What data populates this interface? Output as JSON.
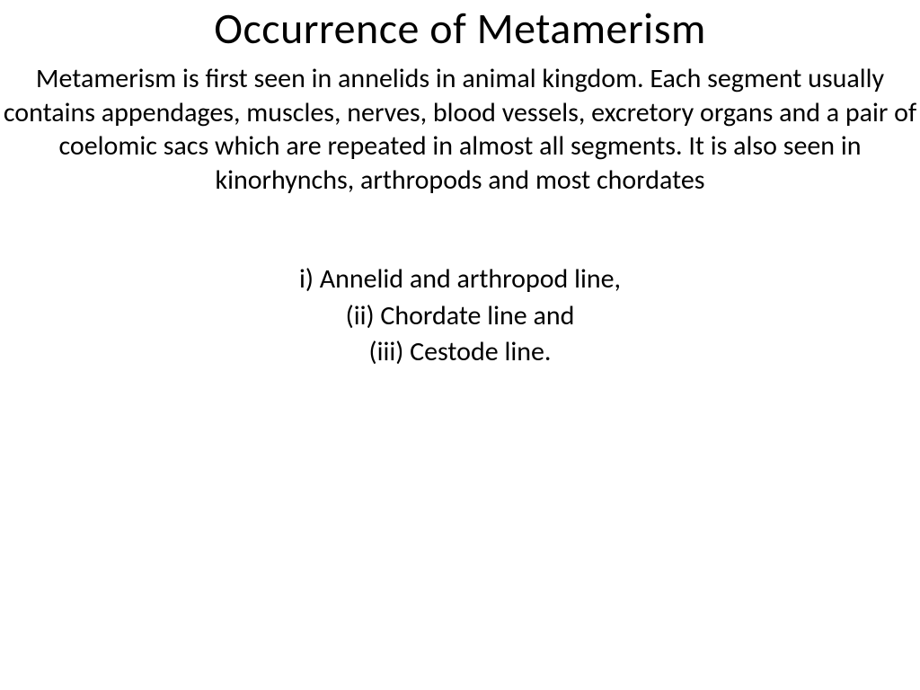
{
  "slide": {
    "title": "Occurrence of Metamerism",
    "body": "Metamerism is first seen in annelids in animal kingdom. Each segment usually contains appendages, muscles, nerves, blood vessels, excretory organs and a pair of coelomic sacs which are repeated in almost all segments. It is also seen in kinorhynchs, arthropods and most chordates",
    "list_items": [
      "i) Annelid and arthropod line,",
      "(ii) Chordate line and",
      "(iii) Cestode line."
    ]
  },
  "style": {
    "background_color": "#ffffff",
    "text_color": "#000000",
    "title_fontsize": 48,
    "body_fontsize": 30,
    "font_family": "Calibri"
  }
}
